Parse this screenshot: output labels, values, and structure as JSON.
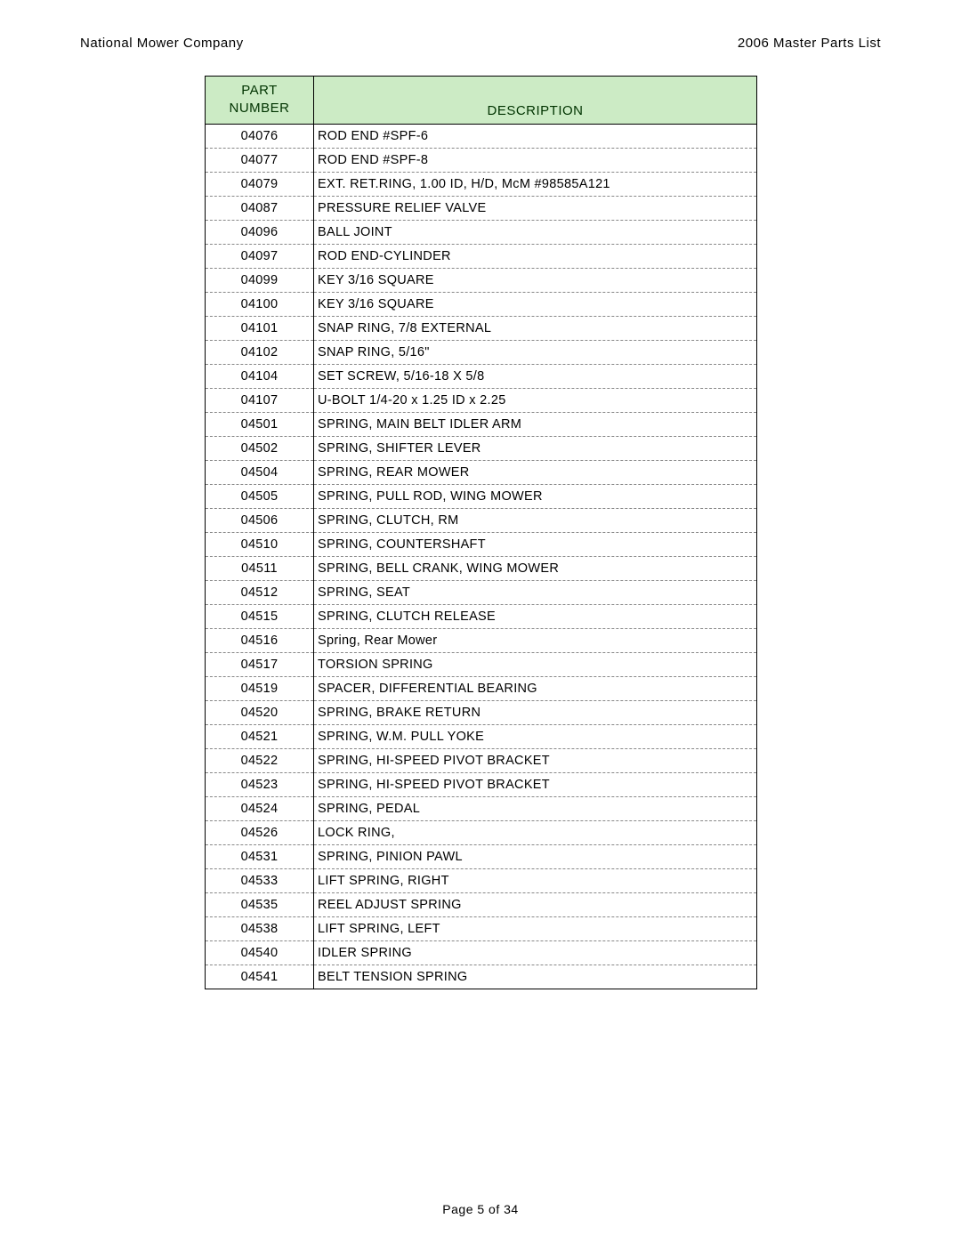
{
  "header": {
    "left": "National Mower Company",
    "right": "2006 Master Parts List"
  },
  "table": {
    "columns": {
      "part_number_line1": "PART",
      "part_number_line2": "NUMBER",
      "description": "DESCRIPTION"
    },
    "header_bg": "#ccebc5",
    "header_fg": "#003300",
    "border_color": "#000000",
    "dash_color": "#888888",
    "rows": [
      {
        "pn": "04076",
        "desc": "ROD END #SPF-6"
      },
      {
        "pn": "04077",
        "desc": "ROD END #SPF-8"
      },
      {
        "pn": "04079",
        "desc": "EXT. RET.RING, 1.00 ID, H/D, McM #98585A121"
      },
      {
        "pn": "04087",
        "desc": "PRESSURE RELIEF VALVE"
      },
      {
        "pn": "04096",
        "desc": "BALL JOINT"
      },
      {
        "pn": "04097",
        "desc": "ROD END-CYLINDER"
      },
      {
        "pn": "04099",
        "desc": "KEY 3/16 SQUARE"
      },
      {
        "pn": "04100",
        "desc": "KEY 3/16 SQUARE"
      },
      {
        "pn": "04101",
        "desc": "SNAP RING, 7/8 EXTERNAL"
      },
      {
        "pn": "04102",
        "desc": "SNAP RING, 5/16\""
      },
      {
        "pn": "04104",
        "desc": "SET SCREW, 5/16-18 X 5/8"
      },
      {
        "pn": "04107",
        "desc": "U-BOLT 1/4-20 x 1.25 ID x 2.25"
      },
      {
        "pn": "04501",
        "desc": "SPRING, MAIN BELT IDLER ARM"
      },
      {
        "pn": "04502",
        "desc": "SPRING, SHIFTER LEVER"
      },
      {
        "pn": "04504",
        "desc": "SPRING, REAR MOWER"
      },
      {
        "pn": "04505",
        "desc": "SPRING, PULL ROD, WING MOWER"
      },
      {
        "pn": "04506",
        "desc": "SPRING, CLUTCH, RM"
      },
      {
        "pn": "04510",
        "desc": "SPRING, COUNTERSHAFT"
      },
      {
        "pn": "04511",
        "desc": "SPRING, BELL CRANK, WING MOWER"
      },
      {
        "pn": "04512",
        "desc": "SPRING, SEAT"
      },
      {
        "pn": "04515",
        "desc": "SPRING, CLUTCH RELEASE"
      },
      {
        "pn": "04516",
        "desc": "Spring, Rear Mower"
      },
      {
        "pn": "04517",
        "desc": "TORSION SPRING"
      },
      {
        "pn": "04519",
        "desc": "SPACER, DIFFERENTIAL BEARING"
      },
      {
        "pn": "04520",
        "desc": "SPRING, BRAKE RETURN"
      },
      {
        "pn": "04521",
        "desc": "SPRING, W.M. PULL YOKE"
      },
      {
        "pn": "04522",
        "desc": "SPRING, HI-SPEED PIVOT BRACKET"
      },
      {
        "pn": "04523",
        "desc": "SPRING, HI-SPEED PIVOT BRACKET"
      },
      {
        "pn": "04524",
        "desc": "SPRING, PEDAL"
      },
      {
        "pn": "04526",
        "desc": "LOCK RING,"
      },
      {
        "pn": "04531",
        "desc": "SPRING, PINION PAWL"
      },
      {
        "pn": "04533",
        "desc": "LIFT SPRING, RIGHT"
      },
      {
        "pn": "04535",
        "desc": "REEL ADJUST SPRING"
      },
      {
        "pn": "04538",
        "desc": "LIFT SPRING, LEFT"
      },
      {
        "pn": "04540",
        "desc": "IDLER SPRING"
      },
      {
        "pn": "04541",
        "desc": "BELT TENSION SPRING"
      }
    ]
  },
  "footer": {
    "text": "Page 5 of 34"
  }
}
